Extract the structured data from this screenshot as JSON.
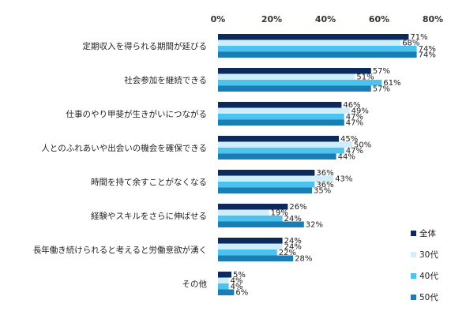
{
  "chart_data": {
    "type": "bar",
    "orientation": "horizontal",
    "categories": [
      "定期収入を得られる期間が延びる",
      "社会参加を継続できる",
      "仕事のやり甲斐が生きがいにつながる",
      "人とのふれあいや出会いの機会を確保できる",
      "時間を持て余すことがなくなる",
      "経験やスキルをさらに伸ばせる",
      "長年働き続けられると考えると労働意欲が湧く",
      "その他"
    ],
    "series": [
      {
        "name": "全体",
        "color": "#0d2a5c",
        "values": [
          71,
          57,
          46,
          45,
          36,
          26,
          24,
          5
        ]
      },
      {
        "name": "30代",
        "color": "#cdeefa",
        "values": [
          68,
          51,
          49,
          50,
          43,
          19,
          24,
          4
        ]
      },
      {
        "name": "40代",
        "color": "#4cc3ee",
        "values": [
          74,
          61,
          47,
          47,
          36,
          24,
          22,
          4
        ]
      },
      {
        "name": "50代",
        "color": "#1a7db3",
        "values": [
          74,
          57,
          47,
          44,
          35,
          32,
          28,
          6
        ]
      }
    ],
    "xlim": [
      0,
      80
    ],
    "ticks": [
      0,
      20,
      40,
      60,
      80
    ],
    "tick_suffix": "%",
    "value_suffix": "%",
    "legend_position": "bottom-right",
    "grid": false
  }
}
